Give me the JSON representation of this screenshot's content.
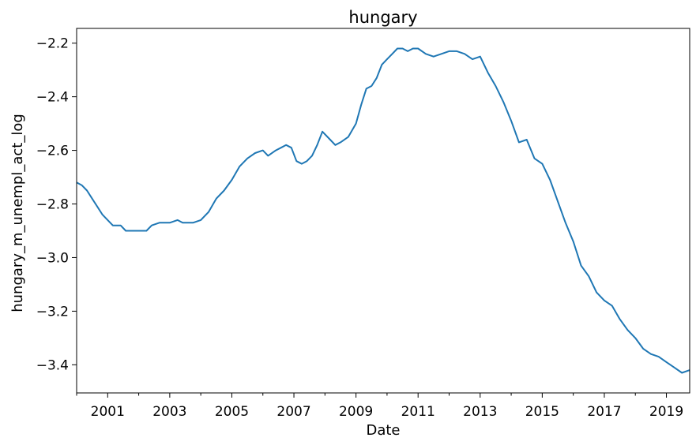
{
  "chart_data": {
    "type": "line",
    "title": "hungary",
    "xlabel": "Date",
    "ylabel": "hungary_m_unempl_act_log",
    "xlim": [
      "2000-01",
      "2019-10"
    ],
    "ylim": [
      -3.505,
      -2.145
    ],
    "xticks": [
      {
        "date": "2001-01",
        "label": "2001"
      },
      {
        "date": "2003-01",
        "label": "2003"
      },
      {
        "date": "2005-01",
        "label": "2005"
      },
      {
        "date": "2007-01",
        "label": "2007"
      },
      {
        "date": "2009-01",
        "label": "2009"
      },
      {
        "date": "2011-01",
        "label": "2011"
      },
      {
        "date": "2013-01",
        "label": "2013"
      },
      {
        "date": "2015-01",
        "label": "2015"
      },
      {
        "date": "2017-01",
        "label": "2017"
      },
      {
        "date": "2019-01",
        "label": "2019"
      }
    ],
    "minor_xticks": [
      "2000-01",
      "2002-01",
      "2004-01",
      "2006-01",
      "2008-01",
      "2010-01",
      "2012-01",
      "2014-01",
      "2016-01",
      "2018-01"
    ],
    "yticks": [
      {
        "value": -3.4,
        "label": "−3.4"
      },
      {
        "value": -3.2,
        "label": "−3.2"
      },
      {
        "value": -3.0,
        "label": "−3.0"
      },
      {
        "value": -2.8,
        "label": "−2.8"
      },
      {
        "value": -2.6,
        "label": "−2.6"
      },
      {
        "value": -2.4,
        "label": "−2.4"
      },
      {
        "value": -2.2,
        "label": "−2.2"
      }
    ],
    "grid": false,
    "line_color": "#1f77b4",
    "series": [
      {
        "points": [
          [
            "2000-01",
            -2.72
          ],
          [
            "2000-03",
            -2.73
          ],
          [
            "2000-05",
            -2.75
          ],
          [
            "2000-07",
            -2.78
          ],
          [
            "2000-09",
            -2.81
          ],
          [
            "2000-11",
            -2.84
          ],
          [
            "2001-01",
            -2.86
          ],
          [
            "2001-03",
            -2.88
          ],
          [
            "2001-06",
            -2.88
          ],
          [
            "2001-08",
            -2.9
          ],
          [
            "2001-12",
            -2.9
          ],
          [
            "2002-04",
            -2.9
          ],
          [
            "2002-06",
            -2.88
          ],
          [
            "2002-09",
            -2.87
          ],
          [
            "2003-01",
            -2.87
          ],
          [
            "2003-04",
            -2.86
          ],
          [
            "2003-06",
            -2.87
          ],
          [
            "2003-10",
            -2.87
          ],
          [
            "2004-01",
            -2.86
          ],
          [
            "2004-04",
            -2.83
          ],
          [
            "2004-07",
            -2.78
          ],
          [
            "2004-10",
            -2.75
          ],
          [
            "2005-01",
            -2.71
          ],
          [
            "2005-04",
            -2.66
          ],
          [
            "2005-07",
            -2.63
          ],
          [
            "2005-10",
            -2.61
          ],
          [
            "2006-01",
            -2.6
          ],
          [
            "2006-03",
            -2.62
          ],
          [
            "2006-06",
            -2.6
          ],
          [
            "2006-08",
            -2.59
          ],
          [
            "2006-10",
            -2.58
          ],
          [
            "2006-12",
            -2.59
          ],
          [
            "2007-02",
            -2.64
          ],
          [
            "2007-04",
            -2.65
          ],
          [
            "2007-06",
            -2.64
          ],
          [
            "2007-08",
            -2.62
          ],
          [
            "2007-10",
            -2.58
          ],
          [
            "2007-12",
            -2.53
          ],
          [
            "2008-03",
            -2.56
          ],
          [
            "2008-05",
            -2.58
          ],
          [
            "2008-07",
            -2.57
          ],
          [
            "2008-10",
            -2.55
          ],
          [
            "2009-01",
            -2.5
          ],
          [
            "2009-03",
            -2.43
          ],
          [
            "2009-05",
            -2.37
          ],
          [
            "2009-07",
            -2.36
          ],
          [
            "2009-09",
            -2.33
          ],
          [
            "2009-11",
            -2.28
          ],
          [
            "2010-01",
            -2.26
          ],
          [
            "2010-03",
            -2.24
          ],
          [
            "2010-05",
            -2.22
          ],
          [
            "2010-07",
            -2.22
          ],
          [
            "2010-09",
            -2.23
          ],
          [
            "2010-11",
            -2.22
          ],
          [
            "2011-01",
            -2.22
          ],
          [
            "2011-04",
            -2.24
          ],
          [
            "2011-07",
            -2.25
          ],
          [
            "2011-10",
            -2.24
          ],
          [
            "2012-01",
            -2.23
          ],
          [
            "2012-04",
            -2.23
          ],
          [
            "2012-07",
            -2.24
          ],
          [
            "2012-10",
            -2.26
          ],
          [
            "2013-01",
            -2.25
          ],
          [
            "2013-04",
            -2.31
          ],
          [
            "2013-07",
            -2.36
          ],
          [
            "2013-10",
            -2.42
          ],
          [
            "2014-01",
            -2.49
          ],
          [
            "2014-04",
            -2.57
          ],
          [
            "2014-07",
            -2.56
          ],
          [
            "2014-10",
            -2.63
          ],
          [
            "2015-01",
            -2.65
          ],
          [
            "2015-04",
            -2.71
          ],
          [
            "2015-07",
            -2.79
          ],
          [
            "2015-10",
            -2.87
          ],
          [
            "2016-01",
            -2.94
          ],
          [
            "2016-04",
            -3.03
          ],
          [
            "2016-07",
            -3.07
          ],
          [
            "2016-10",
            -3.13
          ],
          [
            "2017-01",
            -3.16
          ],
          [
            "2017-04",
            -3.18
          ],
          [
            "2017-07",
            -3.23
          ],
          [
            "2017-10",
            -3.27
          ],
          [
            "2018-01",
            -3.3
          ],
          [
            "2018-04",
            -3.34
          ],
          [
            "2018-07",
            -3.36
          ],
          [
            "2018-10",
            -3.37
          ],
          [
            "2019-01",
            -3.39
          ],
          [
            "2019-04",
            -3.41
          ],
          [
            "2019-07",
            -3.43
          ],
          [
            "2019-10",
            -3.42
          ]
        ]
      }
    ]
  }
}
